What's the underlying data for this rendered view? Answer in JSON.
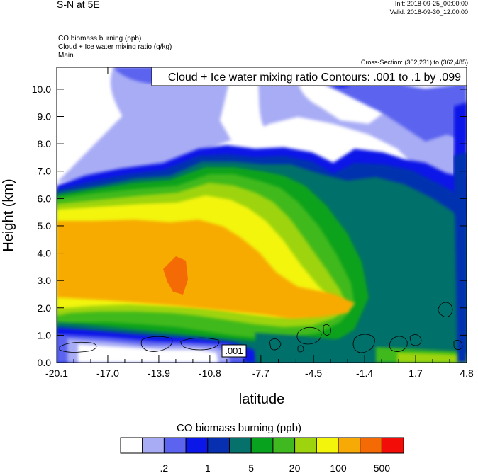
{
  "header": {
    "left_title": "S-N at 5E",
    "init": "Init: 2018-09-25_00:00:00",
    "valid": "Valid: 2018-09-30_12:00:00",
    "subtitle_lines": [
      "CO biomass burning   (ppb)",
      "Cloud + Ice water mixing ratio   (g/kg)",
      "Main"
    ],
    "cross_section": "Cross-Section: (362,231) to (362,485)"
  },
  "chart_data": {
    "type": "heatmap",
    "title": "",
    "contour_legend": "Cloud + Ice water mixing ratio Contours: .001 to .1 by .099",
    "contour_label": ".001",
    "xlabel": "latitude",
    "ylabel": "Height (km)",
    "xlim": [
      -20.1,
      4.8
    ],
    "ylim": [
      0.0,
      10.8
    ],
    "x_ticks": [
      "-20.1",
      "-17.0",
      "-13.9",
      "-10.8",
      "-7.7",
      "-4.5",
      "-1.4",
      "1.7",
      "4.8"
    ],
    "y_ticks": [
      "0.0",
      "1.0",
      "2.0",
      "3.0",
      "4.0",
      "5.0",
      "6.0",
      "7.0",
      "8.0",
      "9.0",
      "10.0"
    ],
    "colorbar_title": "CO biomass burning  (ppb)",
    "colorbar_labels": [
      ".2",
      "1",
      "5",
      "20",
      "100",
      "500"
    ],
    "colors": [
      "#ffffff",
      "#a8acf5",
      "#5c63ef",
      "#0b16e8",
      "#0630b0",
      "#06706a",
      "#08a21f",
      "#3fb91f",
      "#9dd40e",
      "#f3f50a",
      "#f7aa06",
      "#f46b06",
      "#f20d08"
    ],
    "grid": false
  }
}
